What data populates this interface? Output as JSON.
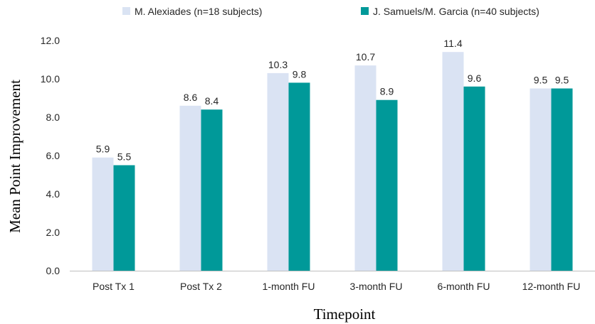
{
  "chart_data": {
    "type": "bar",
    "categories": [
      "Post Tx 1",
      "Post Tx 2",
      "1-month FU",
      "3-month FU",
      "6-month FU",
      "12-month FU"
    ],
    "series": [
      {
        "name": "M. Alexiades (n=18 subjects)",
        "values": [
          5.9,
          8.6,
          10.3,
          10.7,
          11.4,
          9.5
        ],
        "color": "#dae3f3"
      },
      {
        "name": "J. Samuels/M. Garcia (n=40 subjects)",
        "values": [
          5.5,
          8.4,
          9.8,
          8.9,
          9.6,
          9.5
        ],
        "color": "#009999"
      }
    ],
    "xlabel": "Timepoint",
    "ylabel": "Mean Point Improvement",
    "ylim": [
      0,
      12
    ],
    "yticks": [
      "0.0",
      "2.0",
      "4.0",
      "6.0",
      "8.0",
      "10.0",
      "12.0"
    ],
    "data_labels": true,
    "grid": false,
    "legend_position": "top"
  }
}
